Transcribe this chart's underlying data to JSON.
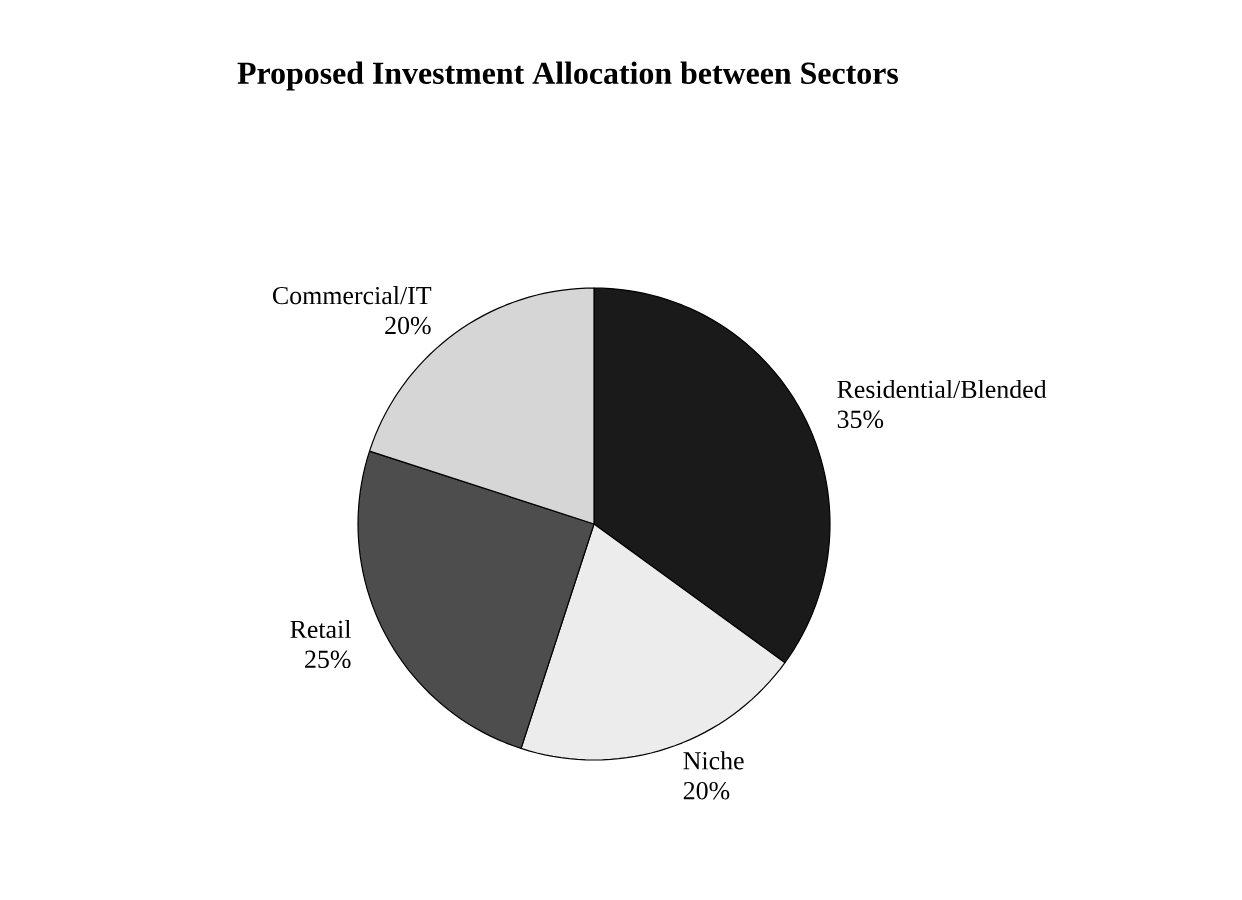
{
  "chart_data": {
    "type": "pie",
    "title": "Proposed Investment Allocation between Sectors",
    "categories": [
      "Residential/Blended",
      "Niche",
      "Retail",
      "Commercial/IT"
    ],
    "values": [
      35,
      20,
      25,
      20
    ],
    "value_labels": [
      "35%",
      "20%",
      "25%",
      "20%"
    ],
    "colors": [
      "#1a1a1a",
      "#ececec",
      "#4d4d4d",
      "#d6d6d6"
    ],
    "legend": false
  }
}
